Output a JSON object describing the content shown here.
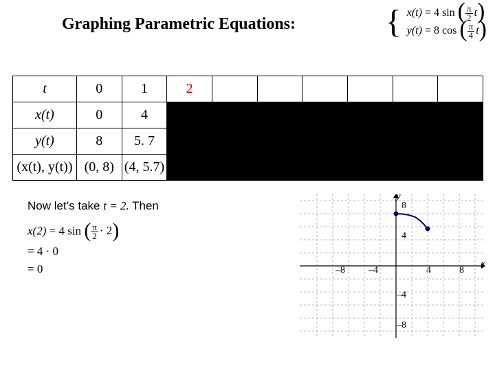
{
  "title": "Graphing Parametric Equations:",
  "definition": {
    "x_eq": {
      "lhs": "x(t)",
      "coef": "= 4 sin",
      "arg_num": "π",
      "arg_den": "2",
      "tail": "t"
    },
    "y_eq": {
      "lhs": "y(t)",
      "coef": "= 8 cos",
      "arg_num": "π",
      "arg_den": "4",
      "tail": "t"
    }
  },
  "table": {
    "headers": [
      "t",
      "x(t)",
      "y(t)",
      "(x(t), y(t))"
    ],
    "rows": [
      {
        "t": "0",
        "x": "0",
        "y": "8",
        "pt": "(0, 8)",
        "highlight": false
      },
      {
        "t": "1",
        "x": "4",
        "y": "5. 7",
        "pt": "(4, 5.7)",
        "highlight": false
      },
      {
        "t": "2",
        "x": "",
        "y": "",
        "pt": "",
        "highlight": true
      },
      {
        "t": "",
        "x": "",
        "y": "",
        "pt": "",
        "highlight": false
      },
      {
        "t": "",
        "x": "",
        "y": "",
        "pt": "",
        "highlight": false
      },
      {
        "t": "",
        "x": "",
        "y": "",
        "pt": "",
        "highlight": false
      },
      {
        "t": "",
        "x": "",
        "y": "",
        "pt": "",
        "highlight": false
      },
      {
        "t": "",
        "x": "",
        "y": "",
        "pt": "",
        "highlight": false
      },
      {
        "t": "",
        "x": "",
        "y": "",
        "pt": "",
        "highlight": false
      }
    ],
    "colors": {
      "highlight": "#cc0000",
      "text": "#000000",
      "border": "#000000",
      "fill_black": "#000000"
    }
  },
  "step": {
    "prefix": "Now let’s take ",
    "var_eq": "t = 2.",
    "suffix": "  Then",
    "work": {
      "line1_lhs": "x(2)",
      "line1_rhs_coef": "= 4 sin",
      "line1_arg_num": "π",
      "line1_arg_den": "2",
      "line1_tail": "· 2",
      "line2": "= 4 · 0",
      "line3": "= 0"
    }
  },
  "graph": {
    "xlim": [
      -10,
      10
    ],
    "ylim": [
      -10,
      10
    ],
    "xticks": [
      -8,
      -4,
      4,
      8
    ],
    "yticks": [
      -8,
      -4,
      4,
      8
    ],
    "axis_color": "#000000",
    "grid_color": "#b8b8b8",
    "grid_dash": "3,3",
    "curve_color": "#000080",
    "point_color": "#000080",
    "points": [
      {
        "x": 0,
        "y": 8
      },
      {
        "x": 4,
        "y": 5.7
      }
    ],
    "curve": [
      {
        "x": 0,
        "y": 8
      },
      {
        "x": 0.8,
        "y": 7.95
      },
      {
        "x": 1.6,
        "y": 7.8
      },
      {
        "x": 2.4,
        "y": 7.5
      },
      {
        "x": 3.0,
        "y": 7.0
      },
      {
        "x": 3.5,
        "y": 6.4
      },
      {
        "x": 4.0,
        "y": 5.7
      }
    ],
    "x_axis_label": "x",
    "y_axis_label": "y"
  }
}
